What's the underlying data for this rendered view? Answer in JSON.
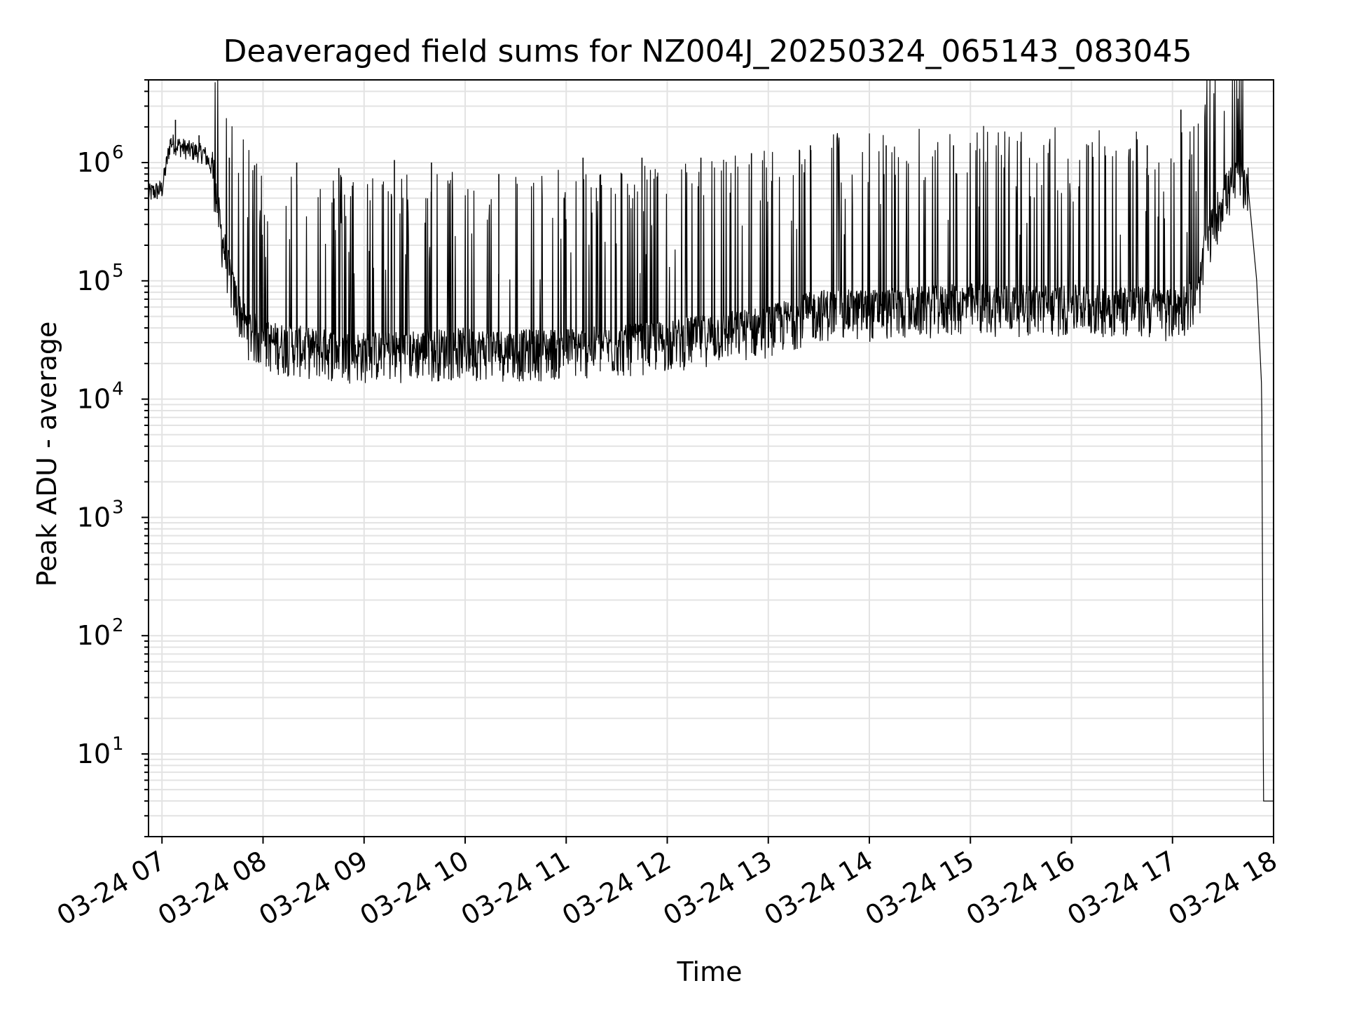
{
  "chart_data": {
    "type": "line",
    "title": "Deaveraged field sums for NZ004J_20250324_065143_083045",
    "xlabel": "Time",
    "ylabel": "Peak ADU - average",
    "yscale": "log",
    "ylim": [
      2,
      5000000
    ],
    "xlim": [
      "2025-03-24 06:52",
      "2025-03-24 18:00"
    ],
    "grid": true,
    "x_tick_labels": [
      "03-24 07",
      "03-24 08",
      "03-24 09",
      "03-24 10",
      "03-24 11",
      "03-24 12",
      "03-24 13",
      "03-24 14",
      "03-24 15",
      "03-24 16",
      "03-24 17",
      "03-24 18"
    ],
    "x_tick_values": [
      "2025-03-24 07:00",
      "2025-03-24 08:00",
      "2025-03-24 09:00",
      "2025-03-24 10:00",
      "2025-03-24 11:00",
      "2025-03-24 12:00",
      "2025-03-24 13:00",
      "2025-03-24 14:00",
      "2025-03-24 15:00",
      "2025-03-24 16:00",
      "2025-03-24 17:00",
      "2025-03-24 18:00"
    ],
    "y_ticks": [
      {
        "base": "10",
        "exp": "1",
        "value": 10
      },
      {
        "base": "10",
        "exp": "2",
        "value": 100
      },
      {
        "base": "10",
        "exp": "3",
        "value": 1000
      },
      {
        "base": "10",
        "exp": "4",
        "value": 10000
      },
      {
        "base": "10",
        "exp": "5",
        "value": 100000
      },
      {
        "base": "10",
        "exp": "6",
        "value": 1000000
      }
    ],
    "line_color": "#000000",
    "series": [
      {
        "points": [
          [
            "2025-03-24 06:52",
            550000
          ],
          [
            "2025-03-24 07:00",
            600000
          ],
          [
            "2025-03-24 07:05",
            1500000
          ],
          [
            "2025-03-24 07:15",
            1300000
          ],
          [
            "2025-03-24 07:25",
            1200000
          ],
          [
            "2025-03-24 07:30",
            900000
          ],
          [
            "2025-03-24 07:35",
            250000
          ],
          [
            "2025-03-24 07:42",
            80000
          ],
          [
            "2025-03-24 07:50",
            40000
          ],
          [
            "2025-03-24 08:00",
            30000
          ],
          [
            "2025-03-24 08:30",
            26000
          ],
          [
            "2025-03-24 09:00",
            24000
          ],
          [
            "2025-03-24 09:30",
            25000
          ],
          [
            "2025-03-24 10:00",
            26000
          ],
          [
            "2025-03-24 10:30",
            25000
          ],
          [
            "2025-03-24 11:00",
            26000
          ],
          [
            "2025-03-24 11:30",
            27000
          ],
          [
            "2025-03-24 12:00",
            30000
          ],
          [
            "2025-03-24 12:30",
            35000
          ],
          [
            "2025-03-24 13:00",
            40000
          ],
          [
            "2025-03-24 13:30",
            55000
          ],
          [
            "2025-03-24 14:00",
            55000
          ],
          [
            "2025-03-24 14:30",
            58000
          ],
          [
            "2025-03-24 15:00",
            62000
          ],
          [
            "2025-03-24 15:30",
            60000
          ],
          [
            "2025-03-24 16:00",
            60000
          ],
          [
            "2025-03-24 16:30",
            60000
          ],
          [
            "2025-03-24 17:00",
            55000
          ],
          [
            "2025-03-24 17:15",
            70000
          ],
          [
            "2025-03-24 17:20",
            200000
          ],
          [
            "2025-03-24 17:30",
            500000
          ],
          [
            "2025-03-24 17:40",
            750000
          ],
          [
            "2025-03-24 17:45",
            600000
          ],
          [
            "2025-03-24 17:50",
            100000
          ],
          [
            "2025-03-24 17:53",
            12000
          ],
          [
            "2025-03-24 17:54",
            4
          ],
          [
            "2025-03-24 18:00",
            4
          ]
        ],
        "spikes": [
          [
            "2025-03-24 07:08",
            2300000
          ],
          [
            "2025-03-24 07:22",
            1700000
          ],
          [
            "2025-03-24 07:40",
            1100000
          ],
          [
            "2025-03-24 07:55",
            950000
          ],
          [
            "2025-03-24 08:20",
            1000000
          ],
          [
            "2025-03-24 08:45",
            900000
          ],
          [
            "2025-03-24 09:18",
            1050000
          ],
          [
            "2025-03-24 09:40",
            1000000
          ],
          [
            "2025-03-24 10:20",
            800000
          ],
          [
            "2025-03-24 11:10",
            1100000
          ],
          [
            "2025-03-24 11:45",
            1100000
          ],
          [
            "2025-03-24 12:20",
            1100000
          ],
          [
            "2025-03-24 12:50",
            1200000
          ],
          [
            "2025-03-24 13:25",
            1400000
          ],
          [
            "2025-03-24 14:10",
            1400000
          ],
          [
            "2025-03-24 14:50",
            1400000
          ],
          [
            "2025-03-24 15:30",
            1500000
          ],
          [
            "2025-03-24 16:10",
            1400000
          ],
          [
            "2025-03-24 16:45",
            1400000
          ],
          [
            "2025-03-24 17:05",
            2800000
          ],
          [
            "2025-03-24 17:25",
            1500000
          ],
          [
            "2025-03-24 17:40",
            1900000
          ]
        ]
      }
    ]
  }
}
